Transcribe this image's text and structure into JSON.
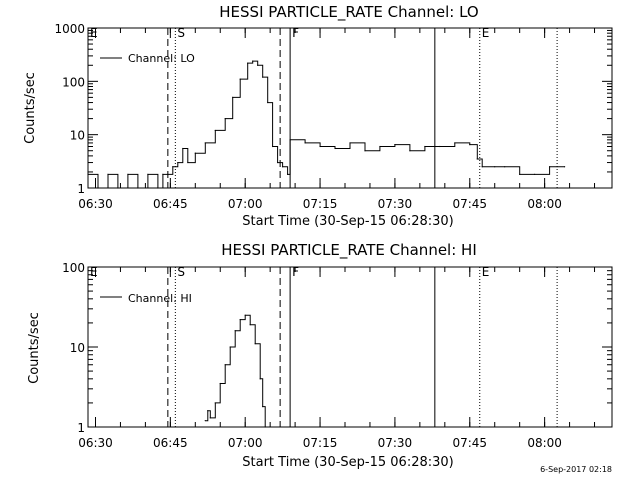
{
  "chart_data": [
    {
      "type": "line",
      "title": "HESSI PARTICLE_RATE Channel: LO",
      "ylabel": "Counts/sec",
      "xlabel": "Start Time (30-Sep-15 06:28:30)",
      "y_scale": "log",
      "ylim": [
        1,
        1000
      ],
      "y_ticks": [
        "1",
        "10",
        "100",
        "1000"
      ],
      "x_ticks": [
        "06:30",
        "06:45",
        "07:00",
        "07:15",
        "07:30",
        "07:45",
        "08:00"
      ],
      "legend": {
        "label": "Channel: LO",
        "position": "top-left"
      },
      "event_markers": [
        {
          "label": "E",
          "time": "06:28:30",
          "style": "dotted"
        },
        {
          "label": "S",
          "time": "06:46:00",
          "style": "dotted"
        },
        {
          "label": "F",
          "time": "07:09:00",
          "style": "solid"
        },
        {
          "label": "E",
          "time": "07:47:00",
          "style": "dotted"
        }
      ],
      "other_markers": [
        {
          "time": "06:44:30",
          "style": "dashed"
        },
        {
          "time": "07:07:00",
          "style": "dashed"
        },
        {
          "time": "07:38:00",
          "style": "solid"
        },
        {
          "time": "08:02:30",
          "style": "dotted"
        }
      ],
      "series": [
        {
          "name": "Channel: LO",
          "x": [
            "06:28:30",
            "06:30:30",
            "06:32:30",
            "06:34:30",
            "06:36:30",
            "06:38:30",
            "06:40:30",
            "06:42:30",
            "06:43:30",
            "06:44:30",
            "06:45:30",
            "06:46:30",
            "06:47:30",
            "06:48:30",
            "06:50:00",
            "06:52:00",
            "06:54:00",
            "06:56:00",
            "06:57:30",
            "06:59:00",
            "07:00:30",
            "07:01:30",
            "07:02:30",
            "07:03:30",
            "07:04:30",
            "07:05:30",
            "07:06:30",
            "07:07:30",
            "07:08:30",
            "07:09:00",
            "07:12:00",
            "07:15:00",
            "07:18:00",
            "07:21:00",
            "07:24:00",
            "07:27:00",
            "07:30:00",
            "07:33:00",
            "07:36:00",
            "07:39:00",
            "07:42:00",
            "07:45:00",
            "07:46:30",
            "07:47:30",
            "07:50:00",
            "07:52:00",
            "07:55:00",
            "07:58:00",
            "08:01:00",
            "08:04:00"
          ],
          "values": [
            1.8,
            1.0,
            1.8,
            1.0,
            1.8,
            1.0,
            1.8,
            1.0,
            1.8,
            1.8,
            2.5,
            3.0,
            5.5,
            3.0,
            4.5,
            7,
            12,
            20,
            50,
            110,
            220,
            240,
            200,
            120,
            40,
            6,
            3,
            2.5,
            1.8,
            8,
            7,
            6,
            5.5,
            7,
            5,
            6,
            6.5,
            5,
            6,
            6,
            7,
            6.5,
            3.5,
            2.5,
            2.5,
            2.5,
            1.8,
            1.8,
            2.5,
            2.5
          ]
        }
      ]
    },
    {
      "type": "line",
      "title": "HESSI PARTICLE_RATE Channel: HI",
      "ylabel": "Counts/sec",
      "xlabel": "Start Time (30-Sep-15 06:28:30)",
      "y_scale": "log",
      "ylim": [
        1,
        100
      ],
      "y_ticks": [
        "1",
        "10",
        "100"
      ],
      "x_ticks": [
        "06:30",
        "06:45",
        "07:00",
        "07:15",
        "07:30",
        "07:45",
        "08:00"
      ],
      "legend": {
        "label": "Channel: HI",
        "position": "top-left"
      },
      "event_markers": [
        {
          "label": "E",
          "time": "06:28:30",
          "style": "dotted"
        },
        {
          "label": "S",
          "time": "06:46:00",
          "style": "dotted"
        },
        {
          "label": "F",
          "time": "07:09:00",
          "style": "solid"
        },
        {
          "label": "E",
          "time": "07:47:00",
          "style": "dotted"
        }
      ],
      "other_markers": [
        {
          "time": "06:44:30",
          "style": "dashed"
        },
        {
          "time": "07:07:00",
          "style": "dashed"
        },
        {
          "time": "07:38:00",
          "style": "solid"
        },
        {
          "time": "08:02:30",
          "style": "dotted"
        }
      ],
      "series": [
        {
          "name": "Channel: HI",
          "x": [
            "06:52:00",
            "06:52:30",
            "06:53:00",
            "06:54:00",
            "06:55:00",
            "06:56:00",
            "06:57:00",
            "06:58:00",
            "06:59:00",
            "07:00:00",
            "07:01:00",
            "07:02:00",
            "07:03:00",
            "07:03:30",
            "07:04:00"
          ],
          "values": [
            1.2,
            1.6,
            1.3,
            2.0,
            3.5,
            6,
            10,
            16,
            22,
            25,
            19,
            11,
            4,
            1.8,
            1.0
          ]
        }
      ]
    }
  ],
  "timestamp": "6-Sep-2017 02:18"
}
